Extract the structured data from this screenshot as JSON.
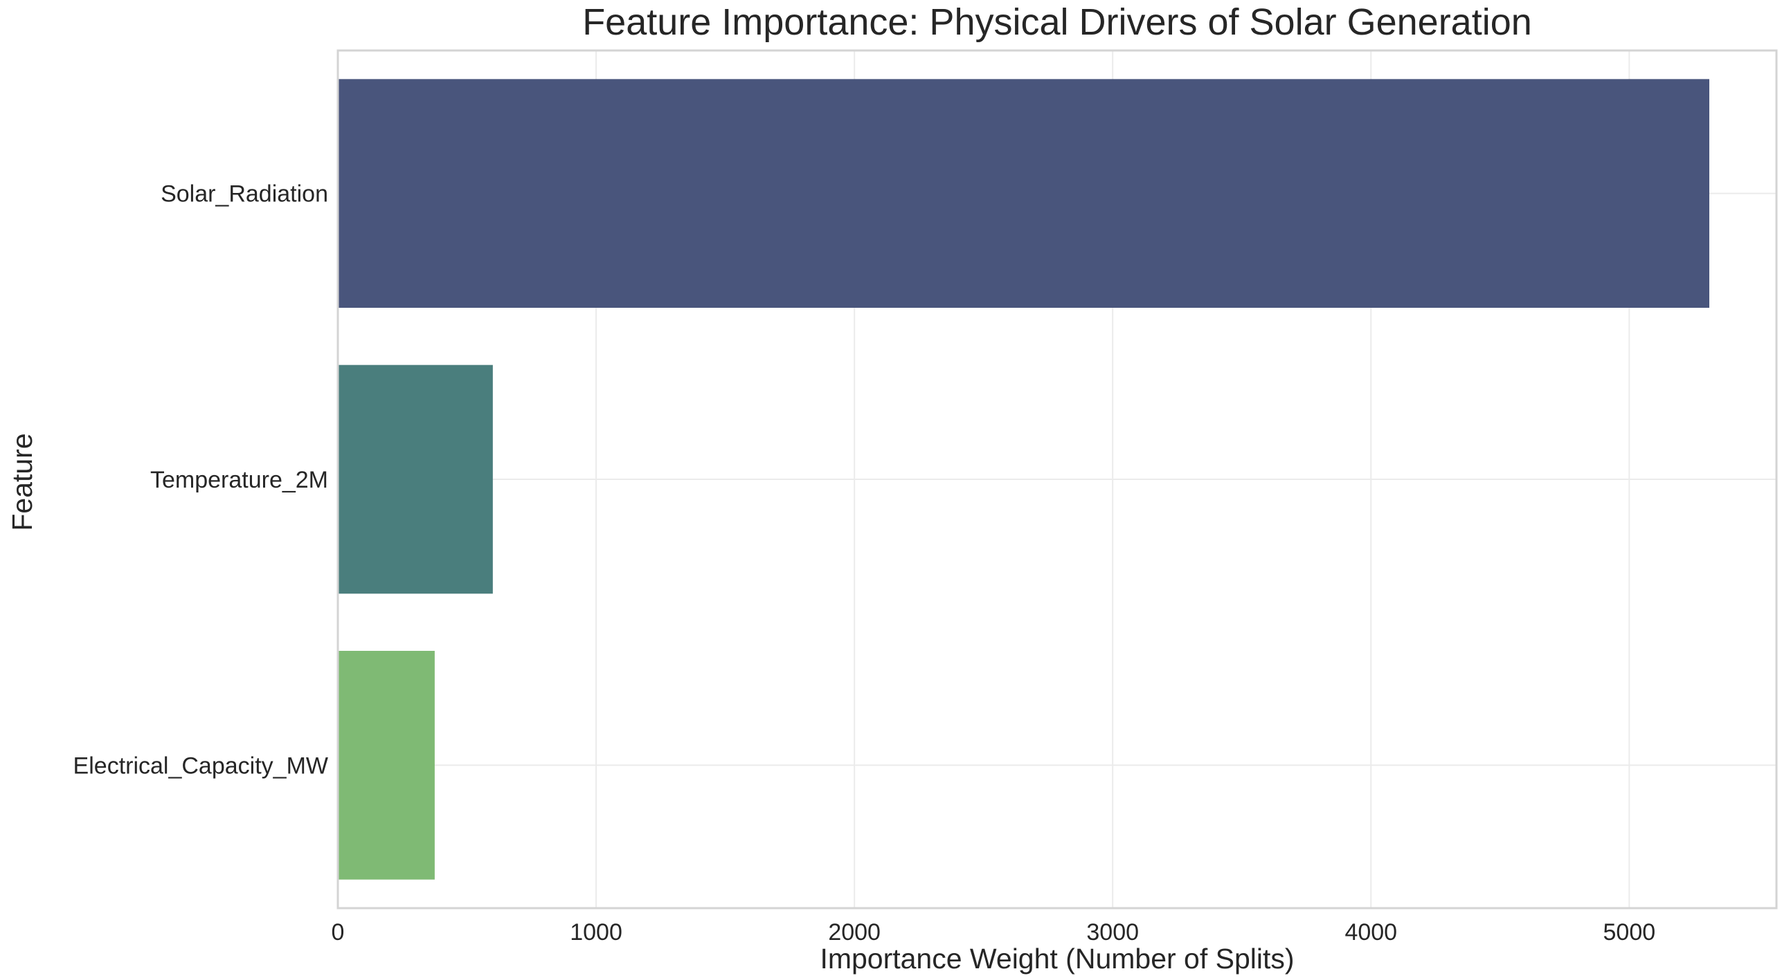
{
  "chart_data": {
    "type": "bar",
    "orientation": "horizontal",
    "title": "Feature Importance: Physical Drivers of Solar Generation",
    "xlabel": "Importance Weight (Number of Splits)",
    "ylabel": "Feature",
    "categories": [
      "Solar_Radiation",
      "Temperature_2M",
      "Electrical_Capacity_MW"
    ],
    "values": [
      5310,
      600,
      375
    ],
    "colors": [
      "#49557c",
      "#4a7e7d",
      "#7fba74"
    ],
    "xlim": [
      0,
      5570
    ],
    "xticks": [
      0,
      1000,
      2000,
      3000,
      4000,
      5000
    ],
    "grid": true,
    "background": "#ffffff",
    "grid_color": "#ebebeb",
    "frame_color": "#d4d4d4"
  }
}
